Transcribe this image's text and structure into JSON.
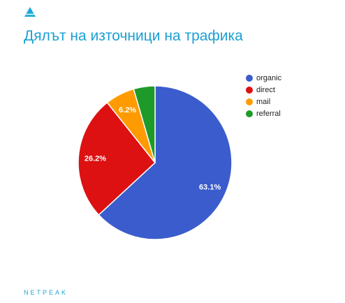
{
  "page": {
    "title": "Дялът на източници на трафика",
    "footer_brand": "NETPEAK",
    "logo_icon": "netpeak-triangle-logo-icon",
    "accent_color": "#1a9fd4"
  },
  "chart_data": {
    "type": "pie",
    "title": "Дялът на източници на трафика",
    "start_angle": "12 o'clock",
    "direction": "clockwise",
    "slices": [
      {
        "label": "organic",
        "value": 63.1,
        "display": "63.1%",
        "color": "#3b5ccc"
      },
      {
        "label": "direct",
        "value": 26.2,
        "display": "26.2%",
        "color": "#dd1111"
      },
      {
        "label": "mail",
        "value": 6.2,
        "display": "6.2%",
        "color": "#ff9b00"
      },
      {
        "label": "referral",
        "value": 4.5,
        "display": "",
        "color": "#1e9a2a"
      }
    ],
    "legend_position": "right"
  }
}
